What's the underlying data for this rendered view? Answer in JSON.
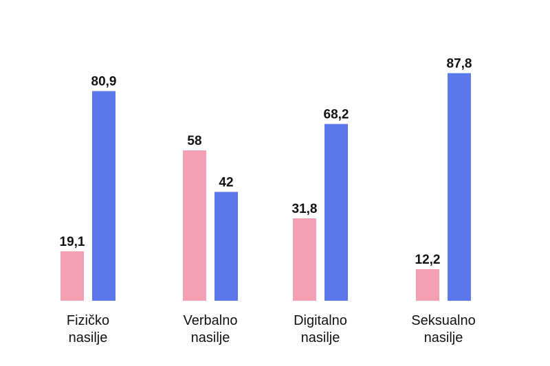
{
  "chart_data": {
    "type": "bar",
    "categories": [
      [
        "Fizičko",
        "nasilje"
      ],
      [
        "Verbalno",
        "nasilje"
      ],
      [
        "Digitalno",
        "nasilje"
      ],
      [
        "Seksualno",
        "nasilje"
      ]
    ],
    "series": [
      {
        "values": [
          19.1,
          58,
          31.8,
          12.2
        ],
        "labels": [
          "19,1",
          "58",
          "31,8",
          "12,2"
        ],
        "color": "#f4a0b2"
      },
      {
        "values": [
          80.9,
          42,
          68.2,
          87.8
        ],
        "labels": [
          "80,9",
          "42",
          "68,2",
          "87,8"
        ],
        "color": "#5a78ea"
      }
    ],
    "ylim": [
      0,
      100
    ],
    "grid": false,
    "legend": "none"
  }
}
